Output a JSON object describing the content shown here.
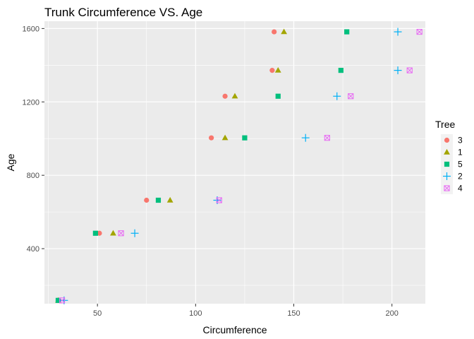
{
  "chart_data": {
    "type": "scatter",
    "title": "Trunk Circumference VS. Age",
    "xlabel": "Circumference",
    "ylabel": "Age",
    "xlim": [
      23,
      217
    ],
    "ylim": [
      100,
      1640
    ],
    "xticks": [
      50,
      100,
      150,
      200
    ],
    "yticks": [
      400,
      800,
      1200,
      1600
    ],
    "grid": true,
    "legend_position": "right",
    "legend_title": "Tree",
    "series": [
      {
        "name": "3",
        "color": "#F8766D",
        "marker": "circle",
        "points": [
          [
            30,
            118
          ],
          [
            51,
            484
          ],
          [
            75,
            664
          ],
          [
            108,
            1004
          ],
          [
            115,
            1231
          ],
          [
            139,
            1372
          ],
          [
            140,
            1582
          ]
        ]
      },
      {
        "name": "1",
        "color": "#A3A500",
        "marker": "triangle",
        "points": [
          [
            30,
            118
          ],
          [
            58,
            484
          ],
          [
            87,
            664
          ],
          [
            115,
            1004
          ],
          [
            120,
            1231
          ],
          [
            142,
            1372
          ],
          [
            145,
            1582
          ]
        ]
      },
      {
        "name": "5",
        "color": "#00BF7D",
        "marker": "square",
        "points": [
          [
            30,
            118
          ],
          [
            49,
            484
          ],
          [
            81,
            664
          ],
          [
            125,
            1004
          ],
          [
            142,
            1231
          ],
          [
            174,
            1372
          ],
          [
            177,
            1582
          ]
        ]
      },
      {
        "name": "2",
        "color": "#00B0F6",
        "marker": "plus",
        "points": [
          [
            33,
            118
          ],
          [
            69,
            484
          ],
          [
            111,
            664
          ],
          [
            156,
            1004
          ],
          [
            172,
            1231
          ],
          [
            203,
            1372
          ],
          [
            203,
            1582
          ]
        ]
      },
      {
        "name": "4",
        "color": "#E76BF3",
        "marker": "boxx",
        "points": [
          [
            32,
            118
          ],
          [
            62,
            484
          ],
          [
            112,
            664
          ],
          [
            167,
            1004
          ],
          [
            179,
            1231
          ],
          [
            209,
            1372
          ],
          [
            214,
            1582
          ]
        ]
      }
    ]
  }
}
